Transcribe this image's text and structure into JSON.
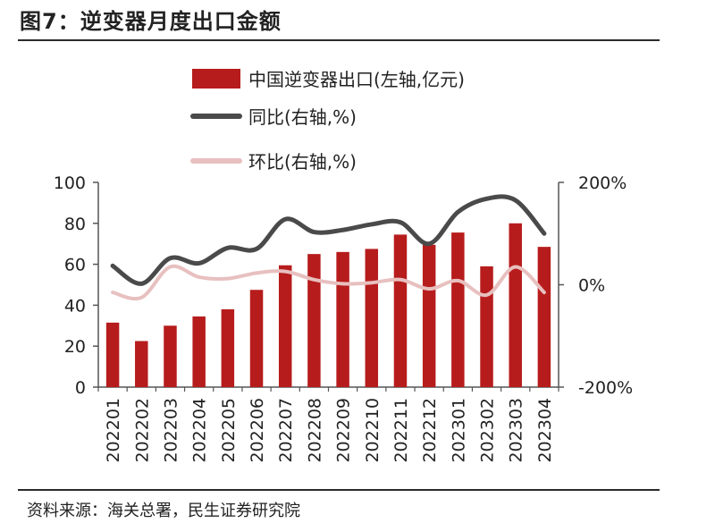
{
  "figure": {
    "title": "图7：逆变器月度出口金额",
    "source": "资料来源：海关总署，民生证券研究院"
  },
  "chart_data": {
    "type": "bar",
    "categories": [
      "202201",
      "202202",
      "202203",
      "202204",
      "202205",
      "202206",
      "202207",
      "202208",
      "202209",
      "202210",
      "202211",
      "202212",
      "202301",
      "202302",
      "202303",
      "202304"
    ],
    "series": [
      {
        "name": "中国逆变器出口(左轴,亿元)",
        "type": "bar",
        "axis": "left",
        "color": "#b71c1c",
        "values": [
          31.5,
          22.5,
          30,
          34.5,
          38,
          47.5,
          59.5,
          65,
          66,
          67.5,
          74.5,
          69.5,
          75.5,
          59,
          80,
          68.5
        ]
      },
      {
        "name": "同比(右轴,%)",
        "type": "line",
        "axis": "right",
        "color": "#4a4a4a",
        "values": [
          37,
          2,
          52,
          42,
          72,
          70,
          128,
          103,
          107,
          118,
          122,
          80,
          142,
          168,
          165,
          100
        ]
      },
      {
        "name": "环比(右轴,%)",
        "type": "line",
        "axis": "right",
        "color": "#e7c0bf",
        "values": [
          -15,
          -25,
          35,
          15,
          12,
          23,
          26,
          10,
          2,
          4,
          10,
          -8,
          8,
          -20,
          35,
          -15
        ]
      }
    ],
    "y_left": {
      "ylim": [
        0,
        100
      ],
      "ticks": [
        "0",
        "20",
        "40",
        "60",
        "80",
        "100"
      ]
    },
    "y_right": {
      "ylim": [
        -200,
        200
      ],
      "ticks": [
        "-200%",
        "0%",
        "200%"
      ]
    },
    "grid": false,
    "legend_position": "top"
  }
}
